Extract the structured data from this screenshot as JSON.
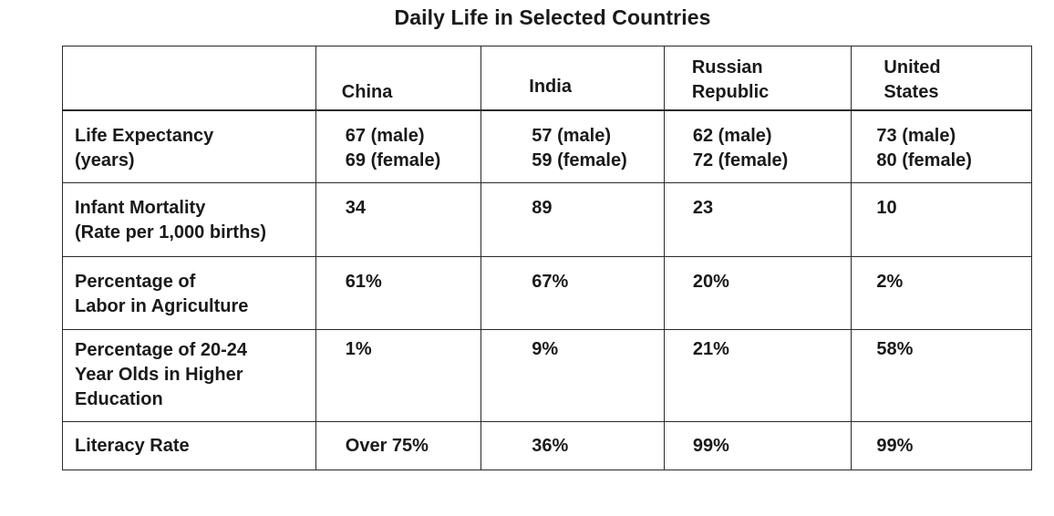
{
  "title": "Daily Life in Selected Countries",
  "columns": [
    "China",
    "India",
    [
      "Russian",
      "Republic"
    ],
    [
      "United",
      "States"
    ]
  ],
  "header": {
    "china": "China",
    "india": "India",
    "russia_line1": "Russian",
    "russia_line2": "Republic",
    "us_line1": "United",
    "us_line2": "States"
  },
  "rows": {
    "life": {
      "label_line1": "Life Expectancy",
      "label_line2": "(years)",
      "china": [
        "67 (male)",
        "69 (female)"
      ],
      "india": [
        "57 (male)",
        "59 (female)"
      ],
      "russia": [
        "62 (male)",
        "72 (female)"
      ],
      "us": [
        "73 (male)",
        "80 (female)"
      ]
    },
    "infant": {
      "label_line1": "Infant Mortality",
      "label_line2": "(Rate per 1,000 births)",
      "china": "34",
      "india": "89",
      "russia": "23",
      "us": "10"
    },
    "agri": {
      "label_line1": "Percentage of",
      "label_line2": "Labor in Agriculture",
      "china": "61%",
      "india": "67%",
      "russia": "20%",
      "us": "2%"
    },
    "edu": {
      "label_line1": "Percentage of 20-24",
      "label_line2": "Year Olds in Higher",
      "label_line3": "Education",
      "china": "1%",
      "india": "9%",
      "russia": "21%",
      "us": "58%"
    },
    "literacy": {
      "label_line1": "Literacy Rate",
      "china": "Over 75%",
      "india": "36%",
      "russia": "99%",
      "us": "99%"
    }
  }
}
